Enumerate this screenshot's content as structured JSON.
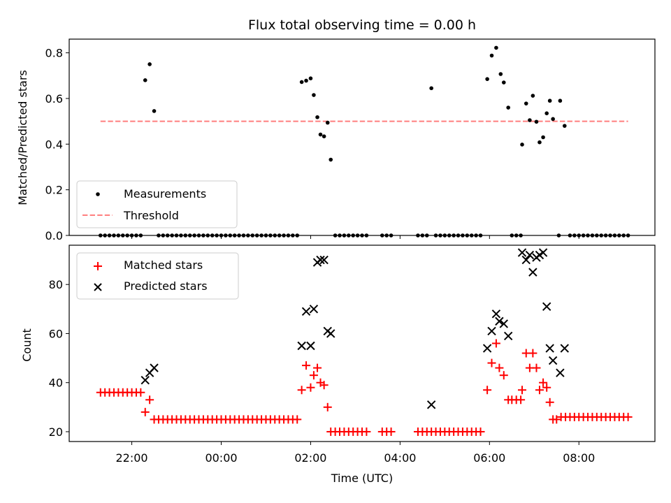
{
  "chart_data": [
    {
      "type": "scatter",
      "title": "Flux total observing time = 0.00 h",
      "xlabel": "",
      "ylabel": "Matched/Predicted stars",
      "ylim": [
        0.0,
        0.86
      ],
      "yticks": [
        "0.0",
        "0.2",
        "0.4",
        "0.6",
        "0.8"
      ],
      "legend": [
        "Measurements",
        "Threshold"
      ],
      "legend_position": "lower-left",
      "threshold": {
        "value": 0.5,
        "x_start": 21.3,
        "x_end": 33.1,
        "color": "#ff7f7f"
      },
      "series": [
        {
          "name": "Measurements",
          "color": "#000000",
          "points": [
            [
              21.3,
              0
            ],
            [
              21.4,
              0
            ],
            [
              21.5,
              0
            ],
            [
              21.6,
              0
            ],
            [
              21.7,
              0
            ],
            [
              21.8,
              0
            ],
            [
              21.9,
              0
            ],
            [
              22.0,
              0
            ],
            [
              22.1,
              0
            ],
            [
              22.2,
              0
            ],
            [
              22.3,
              0.68
            ],
            [
              22.4,
              0.75
            ],
            [
              22.5,
              0.545
            ],
            [
              22.6,
              0
            ],
            [
              22.7,
              0
            ],
            [
              22.8,
              0
            ],
            [
              22.9,
              0
            ],
            [
              23.0,
              0
            ],
            [
              23.1,
              0
            ],
            [
              23.2,
              0
            ],
            [
              23.3,
              0
            ],
            [
              23.4,
              0
            ],
            [
              23.5,
              0
            ],
            [
              23.6,
              0
            ],
            [
              23.7,
              0
            ],
            [
              23.8,
              0
            ],
            [
              23.9,
              0
            ],
            [
              24.0,
              0
            ],
            [
              24.1,
              0
            ],
            [
              24.2,
              0
            ],
            [
              24.3,
              0
            ],
            [
              24.4,
              0
            ],
            [
              24.5,
              0
            ],
            [
              24.6,
              0
            ],
            [
              24.7,
              0
            ],
            [
              24.8,
              0
            ],
            [
              24.9,
              0
            ],
            [
              25.0,
              0
            ],
            [
              25.1,
              0
            ],
            [
              25.2,
              0
            ],
            [
              25.3,
              0
            ],
            [
              25.4,
              0
            ],
            [
              25.5,
              0
            ],
            [
              25.6,
              0
            ],
            [
              25.7,
              0
            ],
            [
              25.8,
              0.672
            ],
            [
              25.9,
              0.678
            ],
            [
              26.0,
              0.688
            ],
            [
              26.07,
              0.615
            ],
            [
              26.15,
              0.518
            ],
            [
              26.22,
              0.442
            ],
            [
              26.3,
              0.434
            ],
            [
              26.38,
              0.494
            ],
            [
              26.45,
              0.332
            ],
            [
              26.55,
              0
            ],
            [
              26.65,
              0
            ],
            [
              26.75,
              0
            ],
            [
              26.85,
              0
            ],
            [
              26.95,
              0
            ],
            [
              27.05,
              0
            ],
            [
              27.15,
              0
            ],
            [
              27.25,
              0
            ],
            [
              27.6,
              0
            ],
            [
              27.7,
              0
            ],
            [
              27.8,
              0
            ],
            [
              28.4,
              0
            ],
            [
              28.5,
              0
            ],
            [
              28.6,
              0
            ],
            [
              28.7,
              0.645
            ],
            [
              28.8,
              0
            ],
            [
              28.9,
              0
            ],
            [
              29.0,
              0
            ],
            [
              29.1,
              0
            ],
            [
              29.2,
              0
            ],
            [
              29.3,
              0
            ],
            [
              29.4,
              0
            ],
            [
              29.5,
              0
            ],
            [
              29.6,
              0
            ],
            [
              29.7,
              0
            ],
            [
              29.8,
              0
            ],
            [
              29.95,
              0.685
            ],
            [
              30.05,
              0.788
            ],
            [
              30.15,
              0.822
            ],
            [
              30.25,
              0.707
            ],
            [
              30.32,
              0.67
            ],
            [
              30.42,
              0.56
            ],
            [
              30.5,
              0
            ],
            [
              30.6,
              0
            ],
            [
              30.7,
              0
            ],
            [
              30.73,
              0.398
            ],
            [
              30.82,
              0.578
            ],
            [
              30.9,
              0.505
            ],
            [
              30.97,
              0.612
            ],
            [
              31.05,
              0.498
            ],
            [
              31.12,
              0.408
            ],
            [
              31.2,
              0.43
            ],
            [
              31.28,
              0.535
            ],
            [
              31.35,
              0.59
            ],
            [
              31.42,
              0.51
            ],
            [
              31.55,
              0
            ],
            [
              31.58,
              0.59
            ],
            [
              31.68,
              0.48
            ],
            [
              31.8,
              0
            ],
            [
              31.9,
              0
            ],
            [
              32.0,
              0
            ],
            [
              32.1,
              0
            ],
            [
              32.2,
              0
            ],
            [
              32.3,
              0
            ],
            [
              32.4,
              0
            ],
            [
              32.5,
              0
            ],
            [
              32.6,
              0
            ],
            [
              32.7,
              0
            ],
            [
              32.8,
              0
            ],
            [
              32.9,
              0
            ],
            [
              33.0,
              0
            ],
            [
              33.1,
              0
            ]
          ]
        }
      ]
    },
    {
      "type": "scatter",
      "title": "",
      "xlabel": "Time (UTC)",
      "ylabel": "Count",
      "ylim": [
        16,
        96
      ],
      "yticks": [
        "20",
        "40",
        "60",
        "80"
      ],
      "xticks": [
        "22:00",
        "00:00",
        "02:00",
        "04:00",
        "06:00",
        "08:00"
      ],
      "xtick_hours": [
        22,
        24,
        26,
        28,
        30,
        32
      ],
      "xlim": [
        20.6,
        33.7
      ],
      "legend": [
        "Matched stars",
        "Predicted stars"
      ],
      "legend_position": "upper-left",
      "series": [
        {
          "name": "Matched stars",
          "marker": "plus",
          "color": "#ff0000",
          "points": [
            [
              21.3,
              36
            ],
            [
              21.4,
              36
            ],
            [
              21.5,
              36
            ],
            [
              21.6,
              36
            ],
            [
              21.7,
              36
            ],
            [
              21.8,
              36
            ],
            [
              21.9,
              36
            ],
            [
              22.0,
              36
            ],
            [
              22.1,
              36
            ],
            [
              22.2,
              36
            ],
            [
              22.3,
              28
            ],
            [
              22.4,
              33
            ],
            [
              22.5,
              25
            ],
            [
              22.6,
              25
            ],
            [
              22.7,
              25
            ],
            [
              22.8,
              25
            ],
            [
              22.9,
              25
            ],
            [
              23.0,
              25
            ],
            [
              23.1,
              25
            ],
            [
              23.2,
              25
            ],
            [
              23.3,
              25
            ],
            [
              23.4,
              25
            ],
            [
              23.5,
              25
            ],
            [
              23.6,
              25
            ],
            [
              23.7,
              25
            ],
            [
              23.8,
              25
            ],
            [
              23.9,
              25
            ],
            [
              24.0,
              25
            ],
            [
              24.1,
              25
            ],
            [
              24.2,
              25
            ],
            [
              24.3,
              25
            ],
            [
              24.4,
              25
            ],
            [
              24.5,
              25
            ],
            [
              24.6,
              25
            ],
            [
              24.7,
              25
            ],
            [
              24.8,
              25
            ],
            [
              24.9,
              25
            ],
            [
              25.0,
              25
            ],
            [
              25.1,
              25
            ],
            [
              25.2,
              25
            ],
            [
              25.3,
              25
            ],
            [
              25.4,
              25
            ],
            [
              25.5,
              25
            ],
            [
              25.6,
              25
            ],
            [
              25.7,
              25
            ],
            [
              25.8,
              37
            ],
            [
              25.9,
              47
            ],
            [
              26.0,
              38
            ],
            [
              26.07,
              43
            ],
            [
              26.15,
              46
            ],
            [
              26.22,
              40
            ],
            [
              26.3,
              39
            ],
            [
              26.38,
              30
            ],
            [
              26.45,
              20
            ],
            [
              26.55,
              20
            ],
            [
              26.65,
              20
            ],
            [
              26.75,
              20
            ],
            [
              26.85,
              20
            ],
            [
              26.95,
              20
            ],
            [
              27.05,
              20
            ],
            [
              27.15,
              20
            ],
            [
              27.25,
              20
            ],
            [
              27.6,
              20
            ],
            [
              27.7,
              20
            ],
            [
              27.8,
              20
            ],
            [
              28.4,
              20
            ],
            [
              28.5,
              20
            ],
            [
              28.6,
              20
            ],
            [
              28.7,
              20
            ],
            [
              28.8,
              20
            ],
            [
              28.9,
              20
            ],
            [
              29.0,
              20
            ],
            [
              29.1,
              20
            ],
            [
              29.2,
              20
            ],
            [
              29.3,
              20
            ],
            [
              29.4,
              20
            ],
            [
              29.5,
              20
            ],
            [
              29.6,
              20
            ],
            [
              29.7,
              20
            ],
            [
              29.8,
              20
            ],
            [
              29.95,
              37
            ],
            [
              30.05,
              48
            ],
            [
              30.15,
              56
            ],
            [
              30.22,
              46
            ],
            [
              30.32,
              43
            ],
            [
              30.42,
              33
            ],
            [
              30.5,
              33
            ],
            [
              30.6,
              33
            ],
            [
              30.7,
              33
            ],
            [
              30.73,
              37
            ],
            [
              30.82,
              52
            ],
            [
              30.9,
              46
            ],
            [
              30.97,
              52
            ],
            [
              31.05,
              46
            ],
            [
              31.12,
              37
            ],
            [
              31.2,
              40
            ],
            [
              31.28,
              38
            ],
            [
              31.35,
              32
            ],
            [
              31.42,
              25
            ],
            [
              31.5,
              25
            ],
            [
              31.6,
              26
            ],
            [
              31.7,
              26
            ],
            [
              31.8,
              26
            ],
            [
              31.9,
              26
            ],
            [
              32.0,
              26
            ],
            [
              32.1,
              26
            ],
            [
              32.2,
              26
            ],
            [
              32.3,
              26
            ],
            [
              32.4,
              26
            ],
            [
              32.5,
              26
            ],
            [
              32.6,
              26
            ],
            [
              32.7,
              26
            ],
            [
              32.8,
              26
            ],
            [
              32.9,
              26
            ],
            [
              33.0,
              26
            ],
            [
              33.1,
              26
            ]
          ]
        },
        {
          "name": "Predicted stars",
          "marker": "x",
          "color": "#000000",
          "points": [
            [
              22.3,
              41
            ],
            [
              22.4,
              44
            ],
            [
              22.5,
              46
            ],
            [
              25.8,
              55
            ],
            [
              25.9,
              69
            ],
            [
              26.0,
              55
            ],
            [
              26.07,
              70
            ],
            [
              26.15,
              89
            ],
            [
              26.22,
              90
            ],
            [
              26.3,
              90
            ],
            [
              26.38,
              61
            ],
            [
              26.45,
              60
            ],
            [
              28.7,
              31
            ],
            [
              29.95,
              54
            ],
            [
              30.05,
              61
            ],
            [
              30.15,
              68
            ],
            [
              30.22,
              65
            ],
            [
              30.32,
              64
            ],
            [
              30.42,
              59
            ],
            [
              30.73,
              93
            ],
            [
              30.82,
              90
            ],
            [
              30.9,
              92
            ],
            [
              30.97,
              85
            ],
            [
              31.05,
              91
            ],
            [
              31.12,
              92
            ],
            [
              31.2,
              93
            ],
            [
              31.28,
              71
            ],
            [
              31.35,
              54
            ],
            [
              31.42,
              49
            ],
            [
              31.58,
              44
            ],
            [
              31.68,
              54
            ]
          ]
        }
      ]
    }
  ]
}
